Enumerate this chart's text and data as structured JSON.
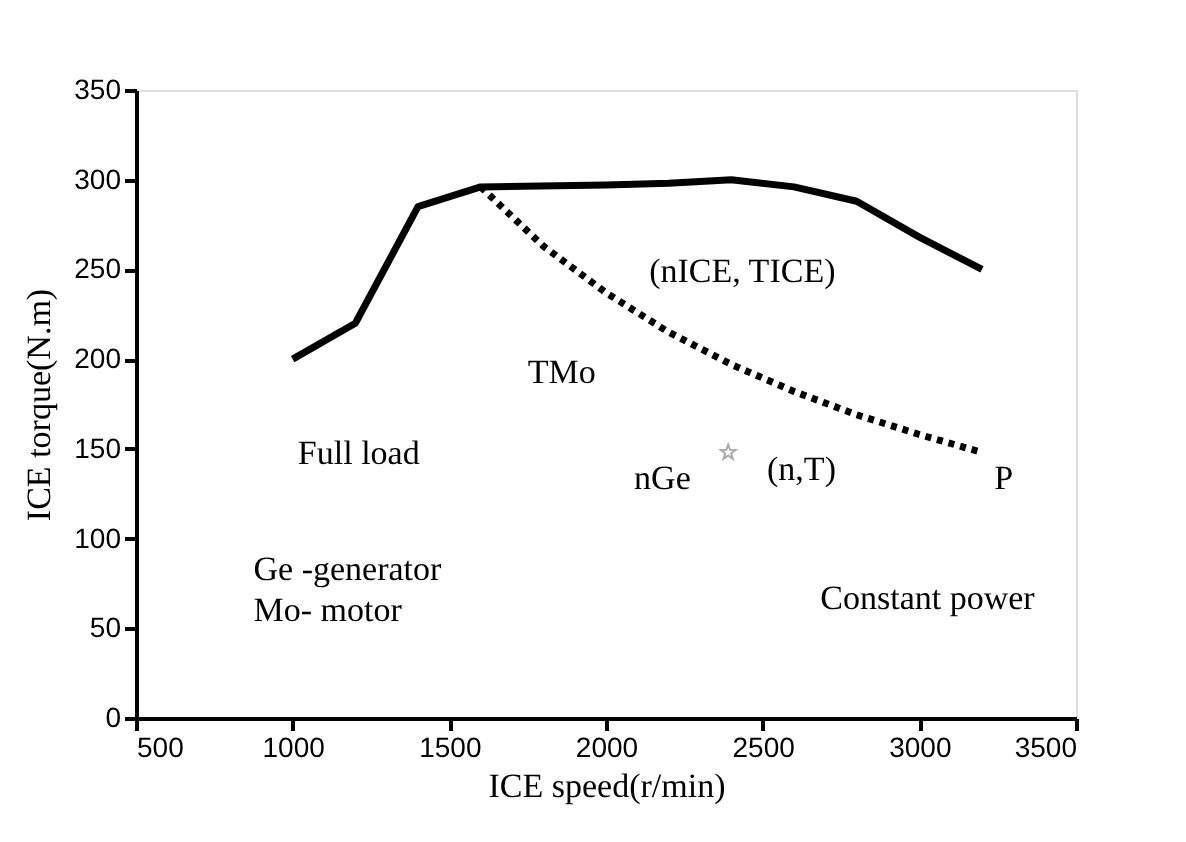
{
  "chart_data": {
    "type": "line",
    "xlabel": "ICE speed(r/min)",
    "ylabel": "ICE torque(N.m)",
    "xlim": [
      500,
      3500
    ],
    "xticks": [
      500,
      1000,
      1500,
      2000,
      2500,
      3000,
      3500
    ],
    "ylim": [
      0,
      350
    ],
    "yticks": [
      0,
      50,
      100,
      150,
      200,
      250,
      300,
      350
    ],
    "grid": false,
    "series": [
      {
        "color": "#000000",
        "line_style": "solid",
        "x": [
          1000,
          1200,
          1400,
          1600,
          2000,
          2200,
          2400,
          2600,
          2800,
          3000,
          3200
        ],
        "values": [
          200,
          220,
          285,
          296,
          297,
          298,
          300,
          296,
          288,
          268,
          250
        ]
      },
      {
        "color": "#000000",
        "line_style": "dotted",
        "x": [
          1600,
          1800,
          2000,
          2200,
          2400,
          2600,
          2800,
          3000,
          3200
        ],
        "values": [
          296,
          263,
          237,
          215,
          197,
          182,
          169,
          158,
          148
        ]
      },
      {
        "type": "scatter",
        "color": "#888888",
        "marker": "star",
        "x": [
          2390
        ],
        "values": [
          148
        ]
      }
    ],
    "annotations": [
      "(nICE, TICE)",
      "TMo",
      "Full load",
      "nGe",
      "(n,T)",
      "P",
      "Ge -generator",
      "Mo- motor",
      "Constant power"
    ]
  }
}
